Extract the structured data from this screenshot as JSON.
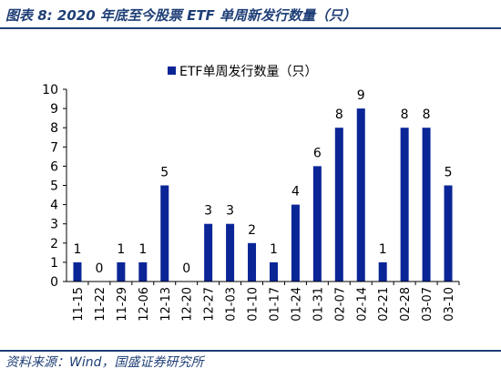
{
  "caption": "图表 8:  2020 年底至今股票 ETF 单周新发行数量（只）",
  "source": "资料来源：Wind，国盛证券研究所",
  "colors": {
    "bar": "#0a2596",
    "header": "#1f3f77"
  },
  "chart_data": {
    "type": "bar",
    "categories": [
      "11-15",
      "11-22",
      "11-29",
      "12-06",
      "12-13",
      "12-20",
      "12-27",
      "01-03",
      "01-10",
      "01-17",
      "01-24",
      "01-31",
      "02-07",
      "02-14",
      "02-21",
      "02-28",
      "03-07",
      "03-10"
    ],
    "series": [
      {
        "name": "ETF单周发行数量（只）",
        "values": [
          1,
          0,
          1,
          1,
          5,
          0,
          3,
          3,
          2,
          1,
          4,
          6,
          8,
          9,
          1,
          8,
          8,
          5
        ]
      }
    ],
    "yticks": [
      "0",
      "1",
      "2",
      "3",
      "4",
      "5",
      "6",
      "7",
      "8",
      "9",
      "10"
    ],
    "ylim": [
      0,
      10
    ],
    "legend_position": "top-center",
    "grid": false
  }
}
